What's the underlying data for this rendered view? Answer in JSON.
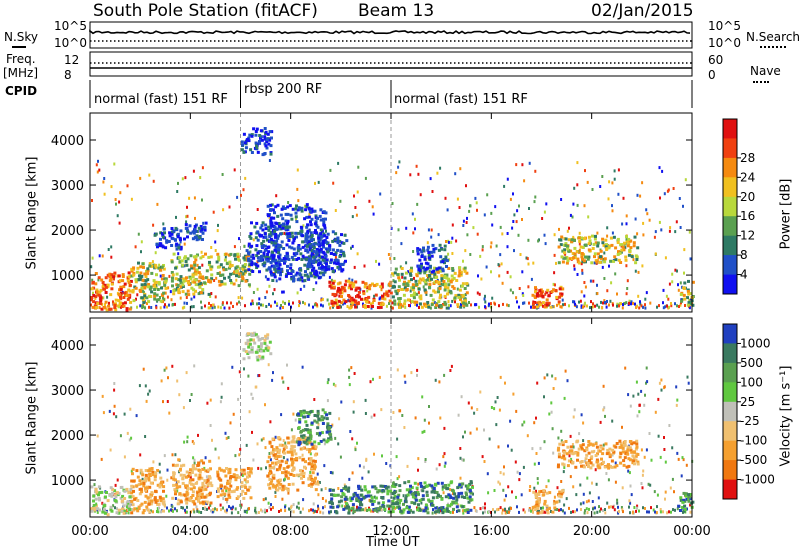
{
  "header": {
    "station": "South Pole Station (fitACF)",
    "beam": "Beam 13",
    "date": "02/Jan/2015"
  },
  "summary": {
    "nsky_label": "N.Sky",
    "nsearch_label": "N.Search",
    "freq_label_line1": "Freq.",
    "freq_label_line2": "[MHz]",
    "nave_label": "Nave",
    "cpid_label": "CPID",
    "nsky_left_ticks": [
      "10^5",
      "10^0"
    ],
    "nsky_right_ticks": [
      "10^5",
      "10^0"
    ],
    "freq_left_ticks": [
      "12",
      "8"
    ],
    "nave_right_ticks": [
      "60",
      "0"
    ],
    "cpid_segments": [
      {
        "label": "normal (fast) 151 RF",
        "start_h": 0,
        "end_h": 6
      },
      {
        "label": "rbsp 200 RF",
        "start_h": 6,
        "end_h": 12
      },
      {
        "label": "normal (fast) 151 RF",
        "start_h": 12,
        "end_h": 24
      }
    ]
  },
  "chart_data": [
    {
      "type": "heatmap",
      "panel": "power",
      "xlabel": "",
      "ylabel": "Slant Range [km]",
      "xlim": [
        0,
        24
      ],
      "ylim": [
        180,
        4600
      ],
      "y_ticks": [
        "1000",
        "2000",
        "3000",
        "4000"
      ],
      "y_tick_values": [
        1000,
        2000,
        3000,
        4000
      ],
      "colorbar": {
        "label": "Power [dB]",
        "ticks": [
          "4",
          "8",
          "12",
          "16",
          "20",
          "24",
          "28"
        ],
        "colors": [
          "#1010f0",
          "#2050c8",
          "#2e7a64",
          "#5aa050",
          "#b8d83c",
          "#f0c020",
          "#f58a10",
          "#f04010",
          "#e01010"
        ]
      },
      "regions": [
        {
          "t0": 0.0,
          "t1": 1.6,
          "r0": 250,
          "r1": 1100,
          "level": "high"
        },
        {
          "t0": 1.6,
          "t1": 3.0,
          "r0": 400,
          "r1": 1300,
          "level": "mid"
        },
        {
          "t0": 2.5,
          "t1": 3.6,
          "r0": 1600,
          "r1": 2100,
          "level": "low"
        },
        {
          "t0": 3.2,
          "t1": 4.8,
          "r0": 600,
          "r1": 1500,
          "level": "mid"
        },
        {
          "t0": 3.4,
          "t1": 4.6,
          "r0": 1800,
          "r1": 2200,
          "level": "low"
        },
        {
          "t0": 5.0,
          "t1": 6.4,
          "r0": 800,
          "r1": 1500,
          "level": "mid"
        },
        {
          "t0": 6.0,
          "t1": 7.2,
          "r0": 3700,
          "r1": 4300,
          "level": "low"
        },
        {
          "t0": 6.2,
          "t1": 7.6,
          "r0": 1100,
          "r1": 2200,
          "level": "low"
        },
        {
          "t0": 7.0,
          "t1": 9.4,
          "r0": 900,
          "r1": 2600,
          "level": "low"
        },
        {
          "t0": 8.5,
          "t1": 10.2,
          "r0": 1100,
          "r1": 2000,
          "level": "low"
        },
        {
          "t0": 9.5,
          "t1": 12.0,
          "r0": 300,
          "r1": 900,
          "level": "high"
        },
        {
          "t0": 12.0,
          "t1": 15.0,
          "r0": 300,
          "r1": 1200,
          "level": "mid"
        },
        {
          "t0": 13.0,
          "t1": 14.2,
          "r0": 1100,
          "r1": 1700,
          "level": "low"
        },
        {
          "t0": 17.6,
          "t1": 18.8,
          "r0": 300,
          "r1": 800,
          "level": "high"
        },
        {
          "t0": 18.6,
          "t1": 21.8,
          "r0": 1300,
          "r1": 1900,
          "level": "mid"
        },
        {
          "t0": 23.5,
          "t1": 24.0,
          "r0": 300,
          "r1": 900,
          "level": "mid"
        }
      ]
    },
    {
      "type": "heatmap",
      "panel": "velocity",
      "xlabel": "Time UT",
      "ylabel": "Slant Range [km]",
      "xlim": [
        0,
        24
      ],
      "ylim": [
        180,
        4600
      ],
      "x_ticks": [
        "00:00",
        "04:00",
        "08:00",
        "12:00",
        "16:00",
        "20:00",
        "00:00"
      ],
      "x_tick_values": [
        0,
        4,
        8,
        12,
        16,
        20,
        24
      ],
      "y_ticks": [
        "1000",
        "2000",
        "3000",
        "4000"
      ],
      "y_tick_values": [
        1000,
        2000,
        3000,
        4000
      ],
      "colorbar": {
        "label": "Velocity [m s⁻¹]",
        "ticks": [
          "1000",
          "500",
          "100",
          "25",
          "-25",
          "-100",
          "-500",
          "-1000"
        ],
        "colors": [
          "#2040c0",
          "#3a7a60",
          "#5aa050",
          "#60c840",
          "#c0c0b8",
          "#f0c070",
          "#f5a030",
          "#f07810",
          "#e01010"
        ]
      },
      "regions": [
        {
          "t0": 0.0,
          "t1": 1.6,
          "r0": 250,
          "r1": 900,
          "level": "neutral"
        },
        {
          "t0": 1.6,
          "t1": 2.9,
          "r0": 300,
          "r1": 1300,
          "level": "neg"
        },
        {
          "t0": 3.2,
          "t1": 4.8,
          "r0": 500,
          "r1": 1500,
          "level": "neg"
        },
        {
          "t0": 6.0,
          "t1": 7.2,
          "r0": 3700,
          "r1": 4300,
          "level": "neutral"
        },
        {
          "t0": 5.0,
          "t1": 6.4,
          "r0": 600,
          "r1": 1300,
          "level": "neg"
        },
        {
          "t0": 7.0,
          "t1": 9.0,
          "r0": 800,
          "r1": 2000,
          "level": "neg"
        },
        {
          "t0": 8.2,
          "t1": 9.6,
          "r0": 1800,
          "r1": 2600,
          "level": "pos"
        },
        {
          "t0": 9.5,
          "t1": 12.0,
          "r0": 300,
          "r1": 900,
          "level": "pos"
        },
        {
          "t0": 12.0,
          "t1": 15.2,
          "r0": 300,
          "r1": 1000,
          "level": "pos"
        },
        {
          "t0": 17.6,
          "t1": 18.8,
          "r0": 300,
          "r1": 800,
          "level": "neg"
        },
        {
          "t0": 18.6,
          "t1": 21.8,
          "r0": 1300,
          "r1": 1900,
          "level": "neg"
        },
        {
          "t0": 23.4,
          "t1": 24.0,
          "r0": 300,
          "r1": 800,
          "level": "pos"
        }
      ]
    }
  ]
}
